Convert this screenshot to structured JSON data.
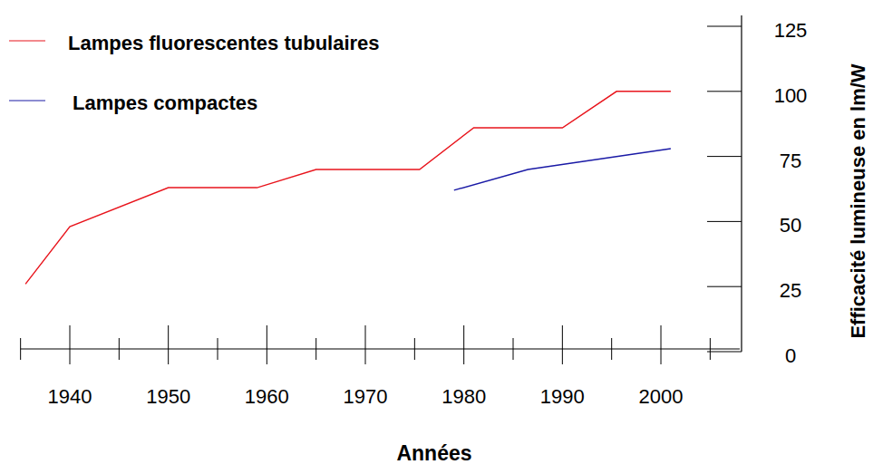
{
  "chart_data": {
    "type": "line",
    "x_label": "Années",
    "y_label": "Efficacité lumineuse en lm/W",
    "xlim": [
      1935,
      2008
    ],
    "xticks": [
      1940,
      1950,
      1960,
      1970,
      1980,
      1990,
      2000
    ],
    "ylim": [
      0,
      125
    ],
    "yticks": [
      0,
      25,
      50,
      75,
      100,
      125
    ],
    "grid": false,
    "legend": "top-left",
    "series": [
      {
        "name": "Lampes fluorescentes tubulaires",
        "color": "#e8141c",
        "x": [
          1935.5,
          1940,
          1950,
          1959,
          1965,
          1975.5,
          1981,
          1990,
          1995.5,
          2001
        ],
        "values": [
          26,
          48,
          63,
          63,
          70,
          70,
          86,
          86,
          100,
          100
        ]
      },
      {
        "name": "Lampes compactes",
        "color": "#1a1aa6",
        "x": [
          1979,
          1986.5,
          2001
        ],
        "values": [
          62,
          70,
          78
        ]
      }
    ]
  }
}
